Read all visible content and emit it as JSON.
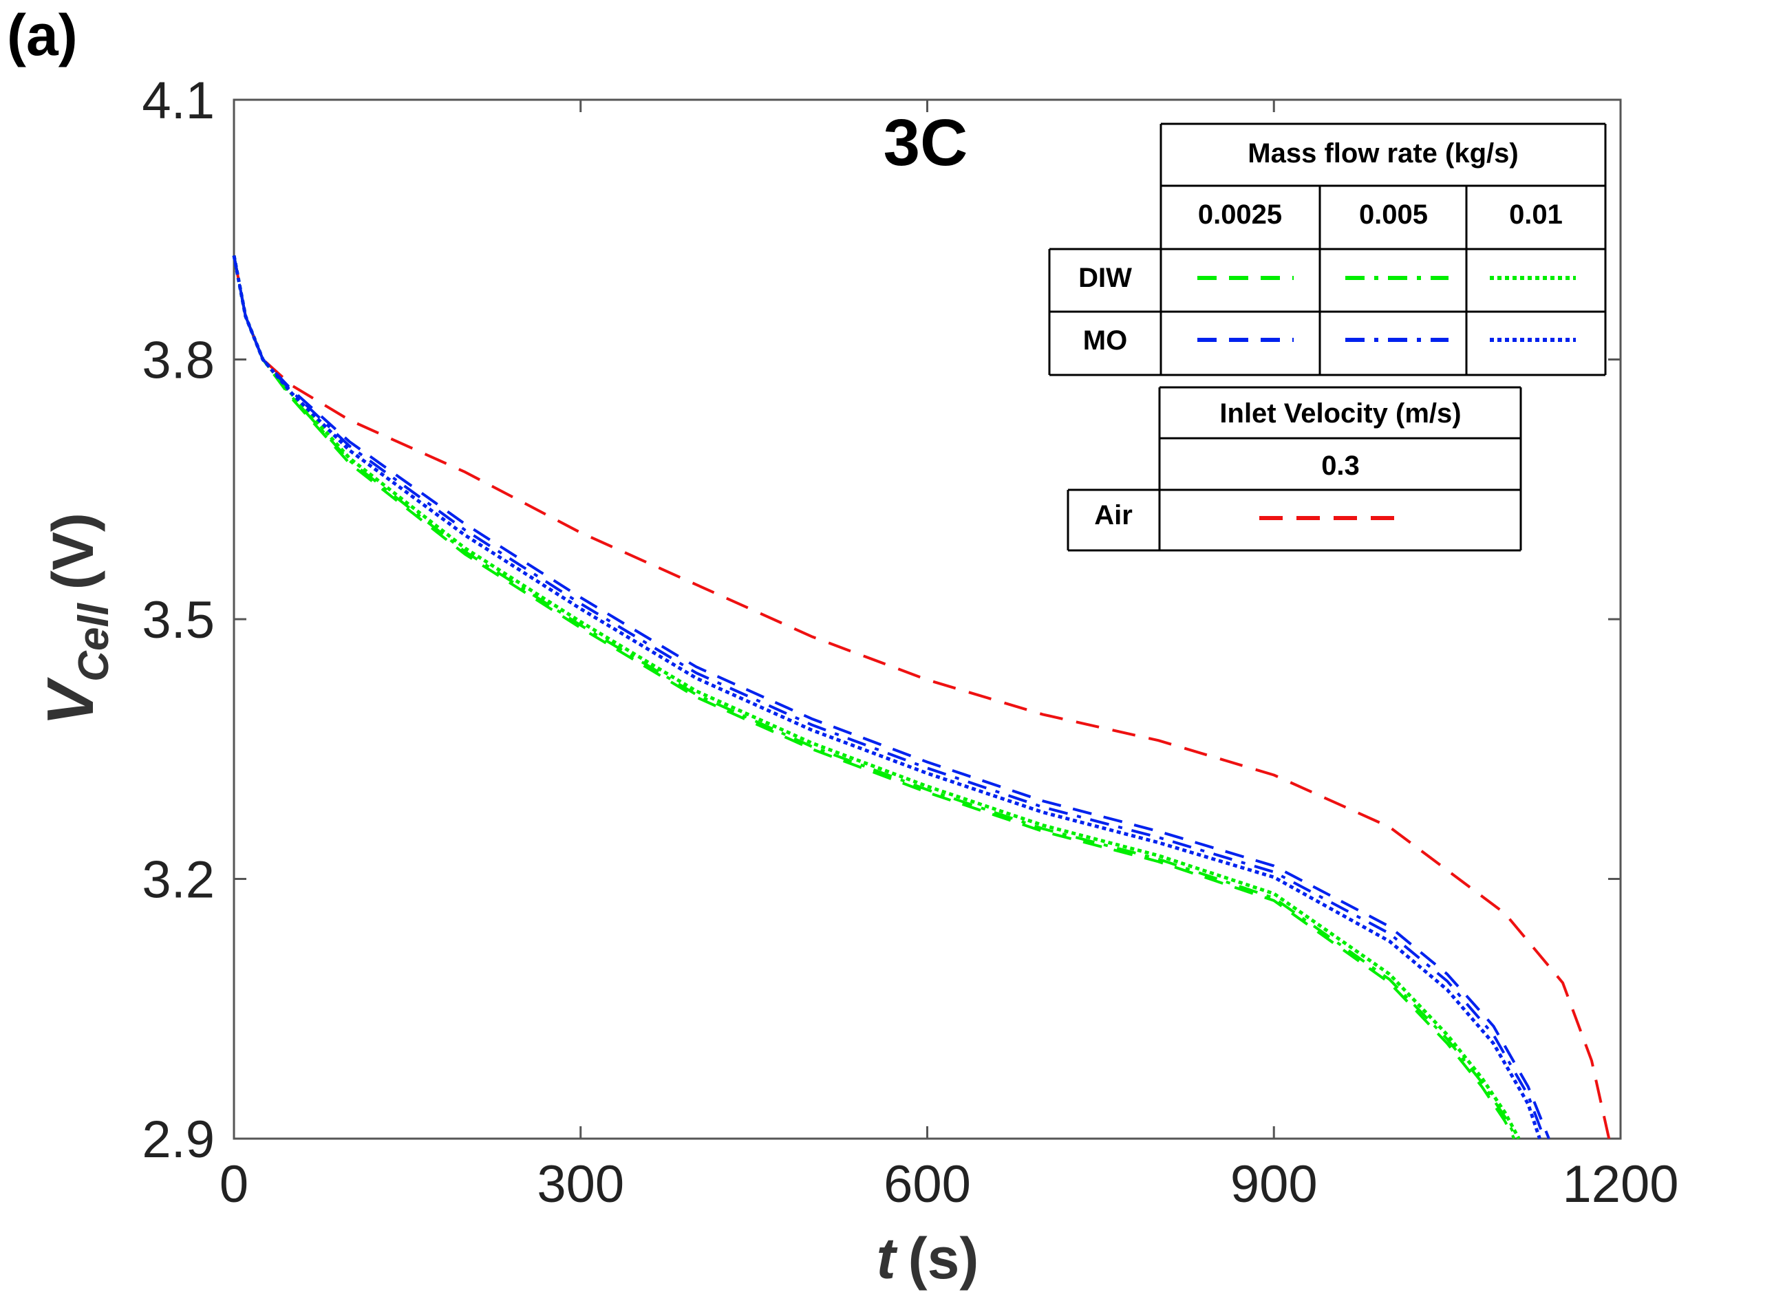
{
  "panel_label": "(a)",
  "chart_data": {
    "type": "line",
    "title": "3C",
    "xlabel_italic": "t",
    "xlabel_unit": "(s)",
    "ylabel_main": "V",
    "ylabel_sub": "Cell",
    "ylabel_unit": "(V)",
    "xlim": [
      0,
      1200
    ],
    "ylim": [
      2.9,
      4.1
    ],
    "xticks": [
      0,
      300,
      600,
      900,
      1200
    ],
    "yticks": [
      2.9,
      3.2,
      3.5,
      3.8,
      4.1
    ],
    "xtick_labels": [
      "0",
      "300",
      "600",
      "900",
      "1200"
    ],
    "ytick_labels": [
      "2.9",
      "3.2",
      "3.5",
      "3.8",
      "4.1"
    ],
    "series": [
      {
        "name": "DIW 0.0025",
        "color": "#00ee00",
        "style": "dashed",
        "x": [
          0,
          10,
          25,
          50,
          100,
          200,
          300,
          400,
          500,
          600,
          700,
          800,
          900,
          1000,
          1050,
          1080,
          1100,
          1108
        ],
        "y": [
          3.92,
          3.85,
          3.8,
          3.755,
          3.68,
          3.575,
          3.49,
          3.41,
          3.35,
          3.3,
          3.255,
          3.22,
          3.175,
          3.08,
          3.01,
          2.96,
          2.92,
          2.9
        ]
      },
      {
        "name": "DIW 0.005",
        "color": "#00ee00",
        "style": "dashdot",
        "x": [
          0,
          10,
          25,
          50,
          100,
          200,
          300,
          400,
          500,
          600,
          700,
          800,
          900,
          1000,
          1050,
          1080,
          1100,
          1110
        ],
        "y": [
          3.92,
          3.85,
          3.8,
          3.757,
          3.683,
          3.578,
          3.493,
          3.413,
          3.353,
          3.303,
          3.258,
          3.223,
          3.178,
          3.084,
          3.015,
          2.965,
          2.925,
          2.9
        ]
      },
      {
        "name": "DIW 0.01",
        "color": "#00ee00",
        "style": "dotted",
        "x": [
          0,
          10,
          25,
          50,
          100,
          200,
          300,
          400,
          500,
          600,
          700,
          800,
          900,
          1000,
          1050,
          1080,
          1100,
          1112
        ],
        "y": [
          3.92,
          3.85,
          3.8,
          3.76,
          3.686,
          3.582,
          3.497,
          3.417,
          3.357,
          3.307,
          3.262,
          3.227,
          3.183,
          3.09,
          3.02,
          2.97,
          2.93,
          2.9
        ]
      },
      {
        "name": "MO 0.0025",
        "color": "#0022ee",
        "style": "dashed",
        "x": [
          0,
          10,
          25,
          50,
          100,
          200,
          300,
          400,
          500,
          600,
          700,
          800,
          900,
          1000,
          1050,
          1090,
          1120,
          1138
        ],
        "y": [
          3.92,
          3.85,
          3.8,
          3.765,
          3.705,
          3.61,
          3.525,
          3.445,
          3.385,
          3.335,
          3.29,
          3.255,
          3.215,
          3.145,
          3.09,
          3.03,
          2.96,
          2.9
        ]
      },
      {
        "name": "MO 0.005",
        "color": "#0022ee",
        "style": "dashdot",
        "x": [
          0,
          10,
          25,
          50,
          100,
          200,
          300,
          400,
          500,
          600,
          700,
          800,
          900,
          1000,
          1050,
          1090,
          1120,
          1134
        ],
        "y": [
          3.92,
          3.85,
          3.8,
          3.763,
          3.7,
          3.603,
          3.518,
          3.438,
          3.378,
          3.328,
          3.283,
          3.248,
          3.208,
          3.137,
          3.082,
          3.02,
          2.95,
          2.9
        ]
      },
      {
        "name": "MO 0.01",
        "color": "#0022ee",
        "style": "dotted",
        "x": [
          0,
          10,
          25,
          50,
          100,
          200,
          300,
          400,
          500,
          600,
          700,
          800,
          900,
          1000,
          1050,
          1090,
          1120,
          1130
        ],
        "y": [
          3.92,
          3.85,
          3.8,
          3.761,
          3.695,
          3.597,
          3.512,
          3.432,
          3.372,
          3.322,
          3.277,
          3.242,
          3.202,
          3.128,
          3.072,
          3.01,
          2.94,
          2.9
        ]
      },
      {
        "name": "Air 0.3",
        "color": "#ee1111",
        "style": "dashed",
        "x": [
          0,
          10,
          25,
          50,
          100,
          200,
          300,
          400,
          500,
          600,
          700,
          800,
          900,
          1000,
          1050,
          1100,
          1150,
          1175,
          1190
        ],
        "y": [
          3.92,
          3.85,
          3.8,
          3.77,
          3.73,
          3.67,
          3.6,
          3.54,
          3.48,
          3.43,
          3.39,
          3.36,
          3.32,
          3.26,
          3.21,
          3.16,
          3.08,
          2.99,
          2.9
        ]
      }
    ],
    "legend": {
      "position": "top-right",
      "mass_flow_header": "Mass flow rate (kg/s)",
      "mass_flow_columns": [
        "0.0025",
        "0.005",
        "0.01"
      ],
      "row_labels": [
        "DIW",
        "MO"
      ],
      "inlet_header": "Inlet Velocity (m/s)",
      "inlet_column": "0.3",
      "inlet_row_label": "Air"
    }
  }
}
